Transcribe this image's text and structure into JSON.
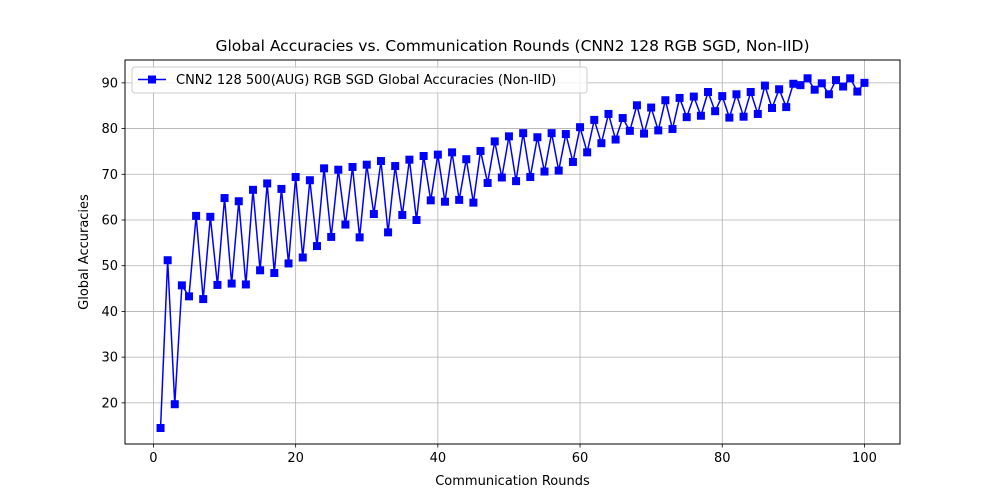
{
  "chart_data": {
    "type": "line",
    "title": "Global Accuracies vs. Communication Rounds (CNN2 128 RGB SGD, Non-IID)",
    "xlabel": "Communication Rounds",
    "ylabel": "Global Accuracies",
    "xlim": [
      -4,
      105
    ],
    "ylim": [
      11,
      95
    ],
    "xticks": [
      0,
      20,
      40,
      60,
      80,
      100
    ],
    "yticks": [
      20,
      30,
      40,
      50,
      60,
      70,
      80,
      90
    ],
    "grid": true,
    "legend_position": "top-left",
    "series": [
      {
        "name": "CNN2 128 500(AUG) RGB SGD Global Accuracies (Non-IID)",
        "color": "#0000ff",
        "marker": "square",
        "x": [
          1,
          2,
          3,
          4,
          5,
          6,
          7,
          8,
          9,
          10,
          11,
          12,
          13,
          14,
          15,
          16,
          17,
          18,
          19,
          20,
          21,
          22,
          23,
          24,
          25,
          26,
          27,
          28,
          29,
          30,
          31,
          32,
          33,
          34,
          35,
          36,
          37,
          38,
          39,
          40,
          41,
          42,
          43,
          44,
          45,
          46,
          47,
          48,
          49,
          50,
          51,
          52,
          53,
          54,
          55,
          56,
          57,
          58,
          59,
          60,
          61,
          62,
          63,
          64,
          65,
          66,
          67,
          68,
          69,
          70,
          71,
          72,
          73,
          74,
          75,
          76,
          77,
          78,
          79,
          80,
          81,
          82,
          83,
          84,
          85,
          86,
          87,
          88,
          89,
          90,
          91,
          92,
          93,
          94,
          95,
          96,
          97,
          98,
          99,
          100
        ],
        "y": [
          14.5,
          51.2,
          19.7,
          45.7,
          43.3,
          60.9,
          42.7,
          60.7,
          45.8,
          64.8,
          46.1,
          64.1,
          45.9,
          66.6,
          49.0,
          68.0,
          48.4,
          66.8,
          50.5,
          69.4,
          51.8,
          68.7,
          54.3,
          71.3,
          56.3,
          71.0,
          59.0,
          71.6,
          56.2,
          72.1,
          61.3,
          72.9,
          57.3,
          71.8,
          61.1,
          73.2,
          60.0,
          74.0,
          64.3,
          74.3,
          64.0,
          74.8,
          64.4,
          73.3,
          63.8,
          75.1,
          68.1,
          77.2,
          69.3,
          78.3,
          68.5,
          79.0,
          69.4,
          78.1,
          70.6,
          79.0,
          70.8,
          78.8,
          72.7,
          80.3,
          74.8,
          81.9,
          76.8,
          83.2,
          77.6,
          82.3,
          79.5,
          85.1,
          78.9,
          84.6,
          79.6,
          86.2,
          79.9,
          86.7,
          82.5,
          87.0,
          82.8,
          88.0,
          83.8,
          87.1,
          82.4,
          87.5,
          82.6,
          88.0,
          83.2,
          89.4,
          84.5,
          88.6,
          84.7,
          89.8,
          89.5,
          91.0,
          88.5,
          89.9,
          87.5,
          90.6,
          89.2,
          91.0,
          88.1,
          90.0
        ]
      }
    ]
  }
}
